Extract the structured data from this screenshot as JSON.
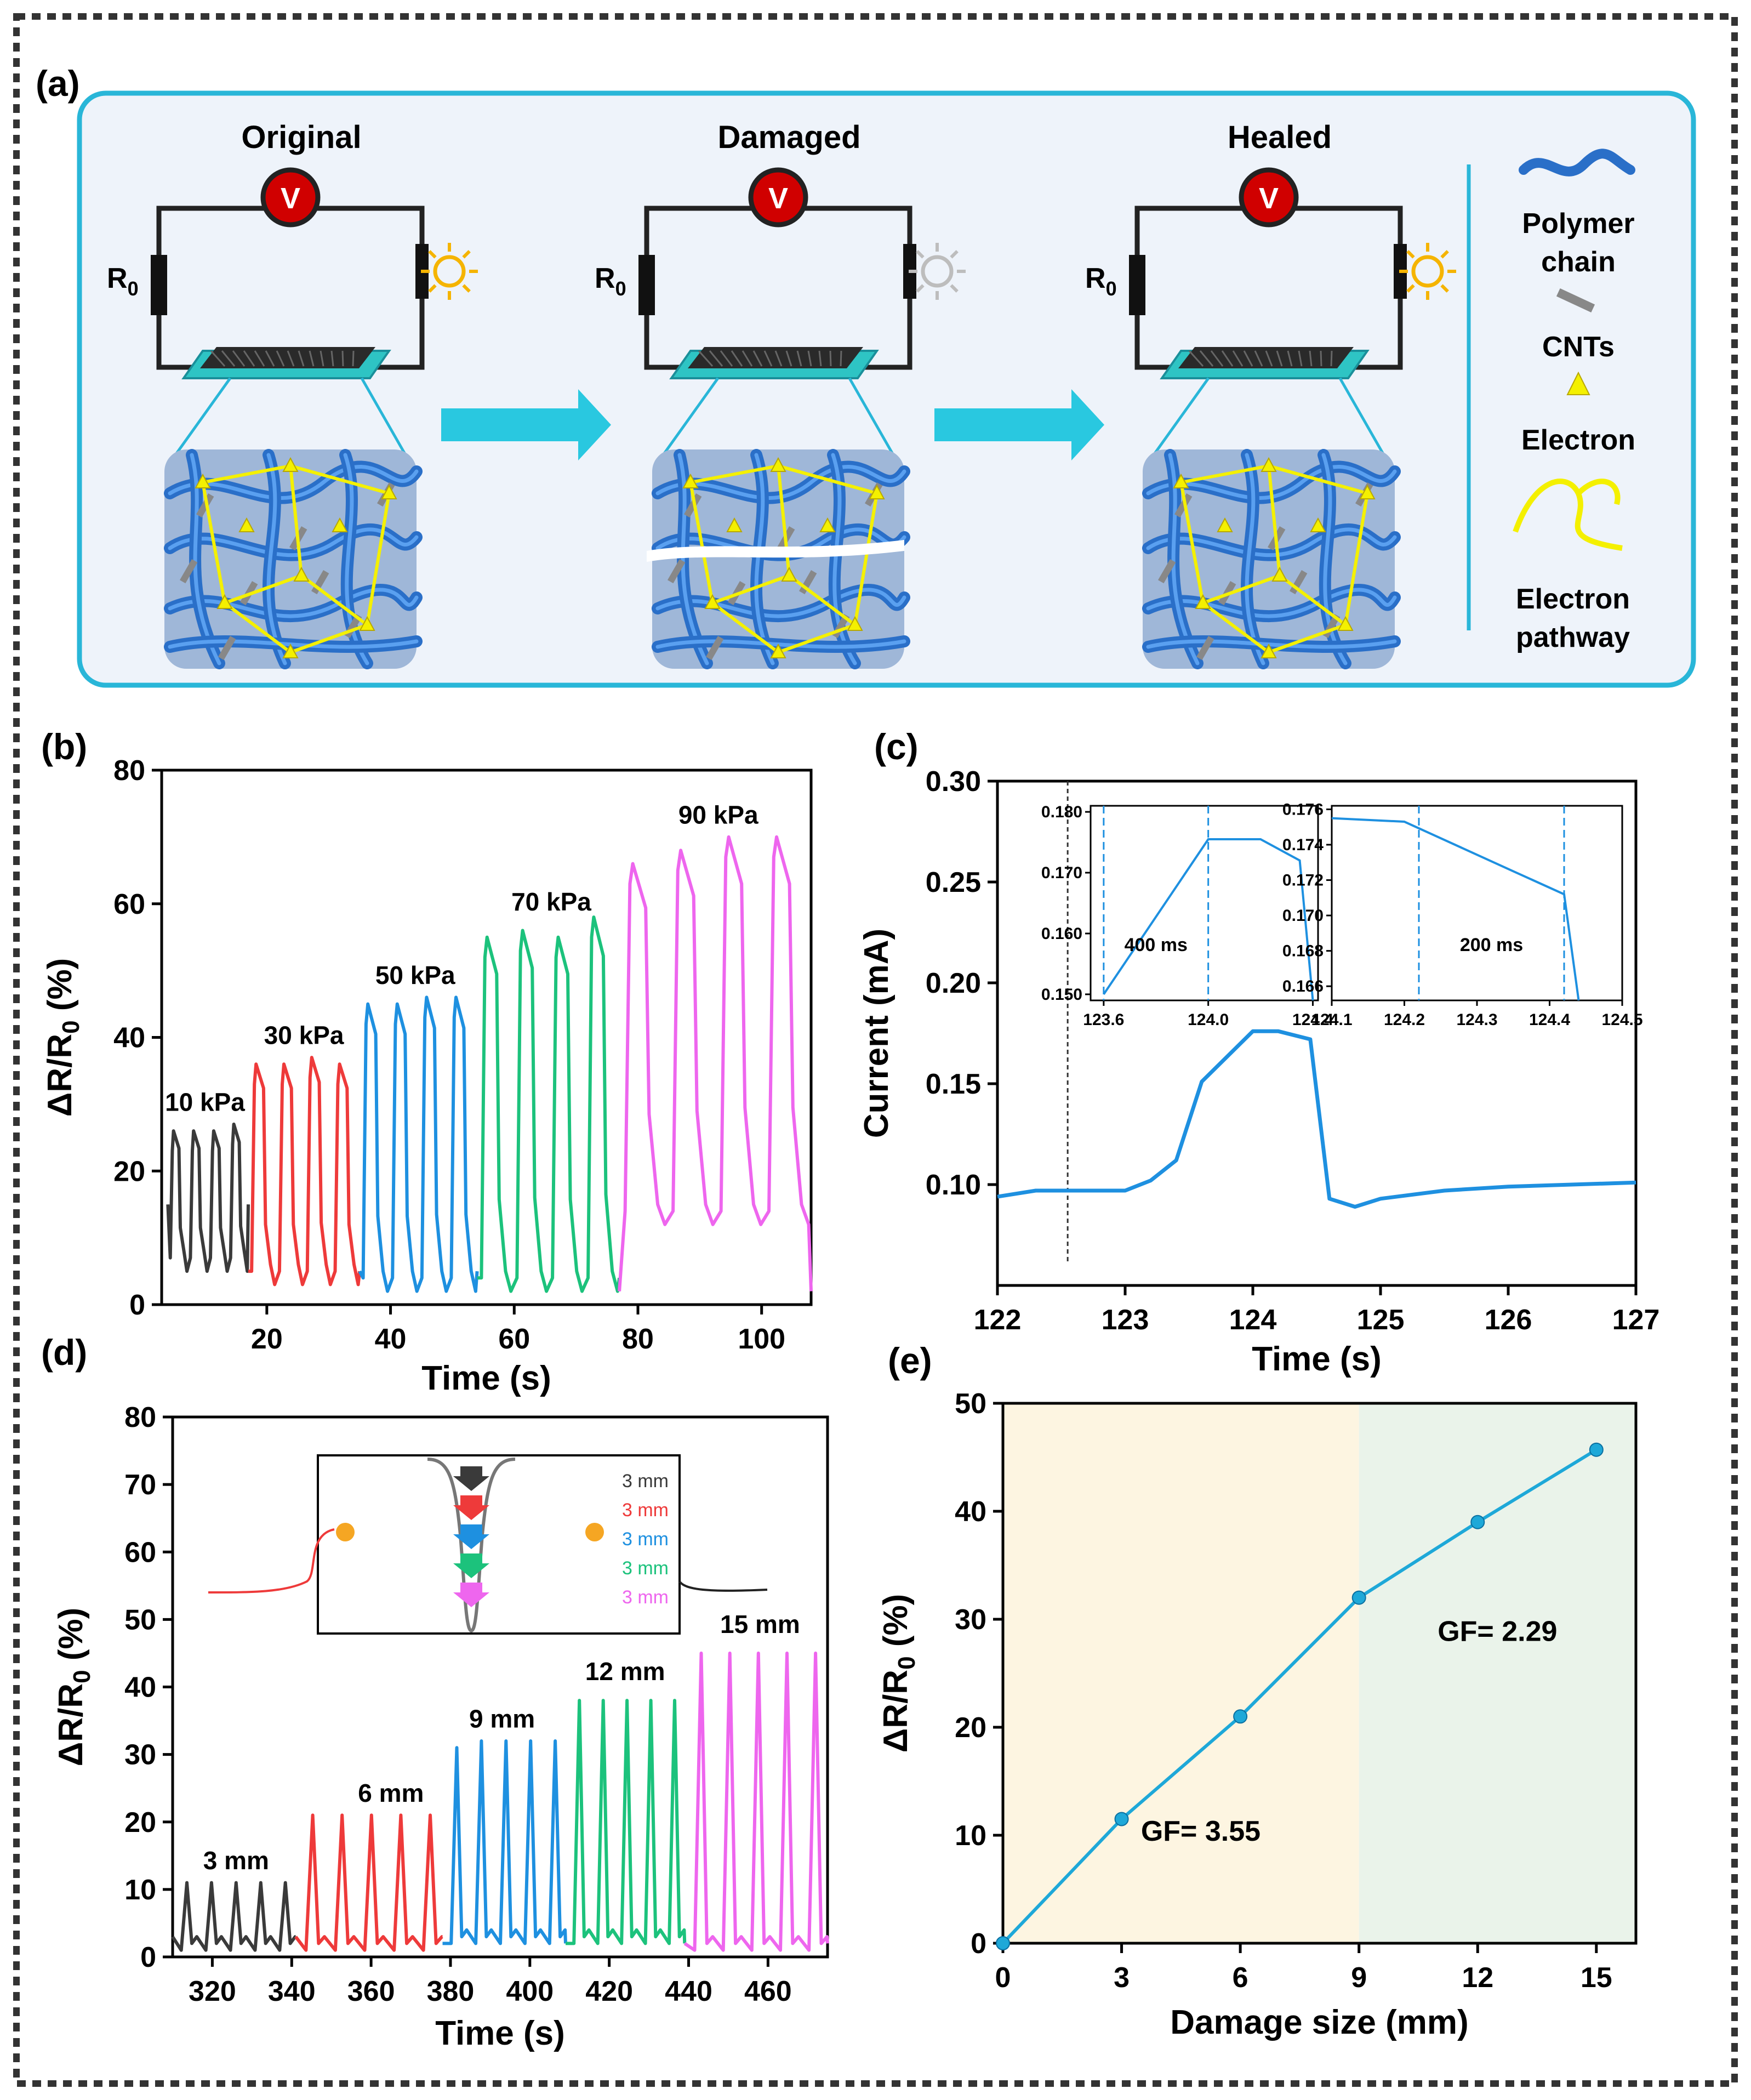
{
  "colors": {
    "cyan": "#29b6d8",
    "black": "#3a3a3a",
    "red": "#ee3a3a",
    "blue": "#1e90e0",
    "green": "#1cc27c",
    "pink": "#ee66ee",
    "orange": "#f5a623",
    "bulbOn": "#f5b400",
    "bulbOff": "#bdbdbd",
    "arrow": "#29c8e0",
    "yellow": "#f4f000",
    "panelBg": "#eef3fa",
    "fiber": "#2a6fc8",
    "voltRed": "#d00000"
  },
  "panel_labels": {
    "a": "(a)",
    "b": "(b)",
    "c": "(c)",
    "d": "(d)",
    "e": "(e)"
  },
  "schematic": {
    "states": [
      {
        "title": "Original",
        "resistor": "R",
        "sub": "0",
        "meter": "V",
        "bulb": "on"
      },
      {
        "title": "Damaged",
        "resistor": "R",
        "sub": "0",
        "meter": "V",
        "bulb": "off"
      },
      {
        "title": "Healed",
        "resistor": "R",
        "sub": "0",
        "meter": "V",
        "bulb": "on"
      }
    ],
    "legend": [
      {
        "icon": "polymer-chain",
        "label": [
          "Polymer",
          "chain"
        ]
      },
      {
        "icon": "cnt",
        "label": [
          "CNTs"
        ]
      },
      {
        "icon": "electron",
        "label": [
          "Electron"
        ]
      },
      {
        "icon": "electron-pathway",
        "label": [
          "Electron",
          "pathway"
        ]
      }
    ]
  },
  "chart_data": [
    {
      "id": "b",
      "type": "line",
      "xlabel": "Time (s)",
      "ylabel": "ΔR/R0 (%)",
      "xlim": [
        3,
        108
      ],
      "ylim": [
        0,
        80
      ],
      "xticks": [
        20,
        40,
        60,
        80,
        100
      ],
      "yticks": [
        0,
        20,
        40,
        60,
        80
      ],
      "series": [
        {
          "name": "10 kPa",
          "color": "black",
          "t0": 4,
          "t1": 17,
          "peaks": [
            26,
            26,
            26,
            27
          ],
          "n": 4,
          "base": 5,
          "start": 15,
          "shape": "square"
        },
        {
          "name": "30 kPa",
          "color": "red",
          "t0": 17,
          "t1": 35,
          "peaks": [
            36,
            36,
            37,
            36
          ],
          "n": 4,
          "base": 3,
          "start": 5,
          "shape": "square"
        },
        {
          "name": "50 kPa",
          "color": "blue",
          "t0": 35,
          "t1": 54,
          "peaks": [
            45,
            45,
            46,
            46
          ],
          "n": 4,
          "base": 2,
          "start": 5,
          "shape": "square"
        },
        {
          "name": "70 kPa",
          "color": "green",
          "t0": 54,
          "t1": 77,
          "peaks": [
            55,
            56,
            55,
            58
          ],
          "n": 4,
          "base": 2,
          "start": 4,
          "shape": "square"
        },
        {
          "name": "90 kPa",
          "color": "pink",
          "t0": 77,
          "t1": 108,
          "peaks": [
            66,
            68,
            70,
            70
          ],
          "n": 4,
          "base": 12,
          "start": 2,
          "shape": "square"
        }
      ],
      "annotations": [
        {
          "text": "10 kPa",
          "x": 10,
          "y": 29
        },
        {
          "text": "30 kPa",
          "x": 26,
          "y": 39
        },
        {
          "text": "50 kPa",
          "x": 44,
          "y": 48
        },
        {
          "text": "70 kPa",
          "x": 66,
          "y": 59
        },
        {
          "text": "90 kPa",
          "x": 93,
          "y": 72
        }
      ]
    },
    {
      "id": "c",
      "type": "line",
      "xlabel": "Time (s)",
      "ylabel": "Current (mA)",
      "xlim": [
        122,
        127
      ],
      "ylim": [
        0.05,
        0.3
      ],
      "xticks": [
        122,
        123,
        124,
        125,
        126,
        127
      ],
      "yticks": [
        0.1,
        0.15,
        0.2,
        0.25,
        0.3
      ],
      "x": [
        122,
        122.3,
        122.6,
        123,
        123.2,
        123.4,
        123.6,
        124,
        124.2,
        124.45,
        124.6,
        124.8,
        125,
        125.5,
        126,
        126.5,
        127
      ],
      "y": [
        0.094,
        0.097,
        0.097,
        0.097,
        0.102,
        0.112,
        0.151,
        0.176,
        0.176,
        0.172,
        0.093,
        0.089,
        0.093,
        0.097,
        0.099,
        0.1,
        0.101
      ],
      "marker_line_x": 122.55,
      "insets": [
        {
          "xlim": [
            123.55,
            124.42
          ],
          "ylim": [
            0.149,
            0.181
          ],
          "xticks": [
            123.6,
            124.0,
            124.4
          ],
          "yticks": [
            0.15,
            0.16,
            0.17,
            0.18
          ],
          "x": [
            123.6,
            124.0,
            124.2,
            124.35,
            124.4
          ],
          "y": [
            0.15,
            0.1755,
            0.1755,
            0.172,
            0.149
          ],
          "vlines": [
            123.6,
            124.0
          ],
          "label": "400 ms"
        },
        {
          "xlim": [
            124.1,
            124.5
          ],
          "ylim": [
            0.1652,
            0.1762
          ],
          "xticks": [
            124.1,
            124.2,
            124.3,
            124.4,
            124.5
          ],
          "yticks": [
            0.166,
            0.168,
            0.17,
            0.172,
            0.174,
            0.176
          ],
          "x": [
            124.1,
            124.2,
            124.35,
            124.42,
            124.44
          ],
          "y": [
            0.1755,
            0.1753,
            0.1725,
            0.1712,
            0.165
          ],
          "vlines": [
            124.22,
            124.42
          ],
          "label": "200 ms"
        }
      ]
    },
    {
      "id": "d",
      "type": "line",
      "xlabel": "Time (s)",
      "ylabel": "ΔR/R0 (%)",
      "xlim": [
        310,
        475
      ],
      "ylim": [
        0,
        80
      ],
      "xticks": [
        320,
        340,
        360,
        380,
        400,
        420,
        440,
        460
      ],
      "yticks": [
        0,
        10,
        20,
        30,
        40,
        50,
        60,
        70,
        80
      ],
      "series": [
        {
          "name": "3 mm",
          "color": "black",
          "t0": 310,
          "t1": 341,
          "peaks": [
            11,
            11,
            11,
            11,
            11
          ],
          "n": 5,
          "base": 1,
          "start": 3,
          "shape": "spike"
        },
        {
          "name": "6 mm",
          "color": "red",
          "t0": 341,
          "t1": 378,
          "peaks": [
            21,
            21,
            21,
            21,
            21
          ],
          "n": 5,
          "base": 1,
          "start": 3,
          "shape": "spike"
        },
        {
          "name": "9 mm",
          "color": "blue",
          "t0": 378,
          "t1": 409,
          "peaks": [
            31,
            32,
            32,
            32,
            32
          ],
          "n": 5,
          "base": 2,
          "start": 2,
          "shape": "spike"
        },
        {
          "name": "12 mm",
          "color": "green",
          "t0": 409,
          "t1": 439,
          "peaks": [
            38,
            38,
            38,
            38,
            38
          ],
          "n": 5,
          "base": 2,
          "start": 2,
          "shape": "spike"
        },
        {
          "name": "15 mm",
          "color": "pink",
          "t0": 439,
          "t1": 475,
          "peaks": [
            45,
            45,
            45,
            45,
            45
          ],
          "n": 5,
          "base": 1,
          "start": 2,
          "shape": "spike"
        }
      ],
      "annotations": [
        {
          "text": "3 mm",
          "x": 326,
          "y": 13
        },
        {
          "text": "6 mm",
          "x": 365,
          "y": 23
        },
        {
          "text": "9 mm",
          "x": 393,
          "y": 34
        },
        {
          "text": "12 mm",
          "x": 424,
          "y": 41
        },
        {
          "text": "15 mm",
          "x": 458,
          "y": 48
        }
      ],
      "inset_labels": [
        {
          "text": "3 mm",
          "color": "black"
        },
        {
          "text": "3 mm",
          "color": "red"
        },
        {
          "text": "3 mm",
          "color": "blue"
        },
        {
          "text": "3 mm",
          "color": "green"
        },
        {
          "text": "3 mm",
          "color": "pink"
        }
      ]
    },
    {
      "id": "e",
      "type": "line",
      "xlabel": "Damage size (mm)",
      "ylabel": "ΔR/R0 (%)",
      "xlim": [
        0,
        16
      ],
      "ylim": [
        0,
        50
      ],
      "xticks": [
        0,
        3,
        6,
        9,
        12,
        15
      ],
      "yticks": [
        0,
        10,
        20,
        30,
        40,
        50
      ],
      "x": [
        0,
        3,
        6,
        9,
        12,
        15
      ],
      "y": [
        0,
        11.5,
        21,
        32,
        39,
        45.7
      ],
      "split_x": 9,
      "regions": [
        {
          "from": 0,
          "to": 9,
          "color": "#fdf5e1"
        },
        {
          "from": 9,
          "to": 16,
          "color": "#eaf3ea"
        }
      ],
      "annotations": [
        {
          "text": "GF= 3.55",
          "x": 5,
          "y": 9.5
        },
        {
          "text": "GF= 2.29",
          "x": 12.5,
          "y": 28
        }
      ]
    }
  ]
}
